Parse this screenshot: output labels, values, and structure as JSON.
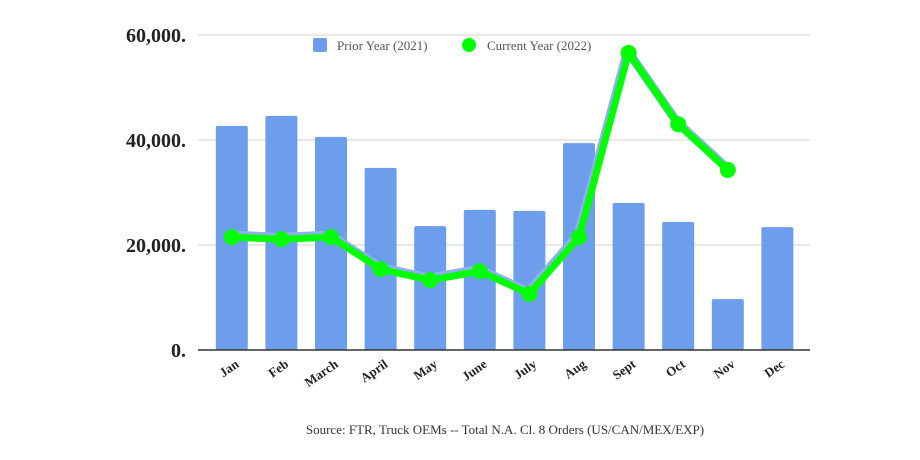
{
  "chart_data": {
    "type": "bar+line",
    "title": "",
    "source": "Source: FTR, Truck OEMs -- Total N.A. Cl. 8 Orders (US/CAN/MEX/EXP)",
    "categories": [
      "Jan",
      "Feb",
      "March",
      "April",
      "May",
      "June",
      "July",
      "Aug",
      "Sept",
      "Oct",
      "Nov",
      "Dec"
    ],
    "series": [
      {
        "name": "Prior Year (2021)",
        "type": "bar",
        "color": "#6d9eeb",
        "values": [
          42700,
          44600,
          40600,
          34700,
          23600,
          26700,
          26500,
          39400,
          28000,
          24400,
          9700,
          23400
        ]
      },
      {
        "name": "Current Year (2022)",
        "type": "line",
        "color": "#00ff00",
        "values": [
          21500,
          21100,
          21500,
          15400,
          13300,
          15000,
          10700,
          21500,
          56600,
          43000,
          34300,
          null
        ]
      }
    ],
    "yticks": [
      "0.",
      "20,000.",
      "40,000.",
      "60,000."
    ],
    "ytick_values": [
      0,
      20000,
      40000,
      60000
    ],
    "ylim": [
      0,
      60000
    ],
    "grid": true,
    "legend": "top-center"
  }
}
